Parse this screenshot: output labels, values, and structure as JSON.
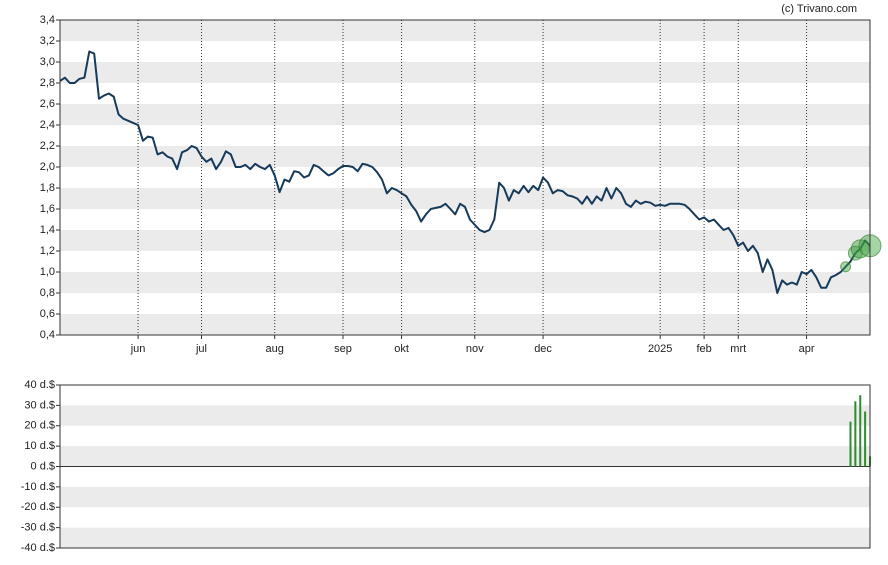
{
  "source": "(c) Trivano.com",
  "chart_data": [
    {
      "type": "line",
      "color": "#163a5a",
      "values": [
        2.82,
        2.85,
        2.8,
        2.8,
        2.84,
        2.85,
        3.1,
        3.08,
        2.65,
        2.68,
        2.7,
        2.67,
        2.5,
        2.46,
        2.44,
        2.42,
        2.4,
        2.25,
        2.29,
        2.28,
        2.12,
        2.14,
        2.1,
        2.08,
        1.98,
        2.14,
        2.16,
        2.2,
        2.18,
        2.1,
        2.05,
        2.08,
        1.98,
        2.05,
        2.15,
        2.12,
        2.0,
        2.0,
        2.02,
        1.98,
        2.03,
        2.0,
        1.98,
        2.02,
        1.92,
        1.76,
        1.88,
        1.86,
        1.96,
        1.95,
        1.9,
        1.92,
        2.02,
        2.0,
        1.96,
        1.92,
        1.94,
        1.98,
        2.01,
        2.01,
        2.0,
        1.96,
        2.03,
        2.02,
        2.0,
        1.95,
        1.88,
        1.75,
        1.8,
        1.78,
        1.75,
        1.72,
        1.64,
        1.58,
        1.48,
        1.55,
        1.6,
        1.61,
        1.62,
        1.65,
        1.6,
        1.55,
        1.65,
        1.62,
        1.5,
        1.45,
        1.4,
        1.38,
        1.4,
        1.5,
        1.85,
        1.8,
        1.68,
        1.78,
        1.75,
        1.82,
        1.76,
        1.82,
        1.78,
        1.9,
        1.85,
        1.75,
        1.78,
        1.77,
        1.73,
        1.72,
        1.7,
        1.65,
        1.72,
        1.65,
        1.72,
        1.68,
        1.8,
        1.7,
        1.8,
        1.75,
        1.65,
        1.62,
        1.68,
        1.65,
        1.67,
        1.66,
        1.63,
        1.64,
        1.63,
        1.65,
        1.65,
        1.65,
        1.64,
        1.6,
        1.55,
        1.5,
        1.52,
        1.48,
        1.5,
        1.45,
        1.4,
        1.42,
        1.35,
        1.25,
        1.28,
        1.2,
        1.25,
        1.18,
        1.0,
        1.12,
        1.02,
        0.8,
        0.92,
        0.88,
        0.9,
        0.88,
        1.0,
        0.98,
        1.02,
        0.95,
        0.85,
        0.85,
        0.95,
        0.97,
        1.0,
        1.05,
        1.1,
        1.18,
        1.22,
        1.3,
        1.25
      ],
      "highlight": [
        161,
        163,
        164,
        166
      ],
      "xlim": [
        0,
        166
      ],
      "xticks": [
        {
          "value": 16,
          "label": "jun"
        },
        {
          "value": 29,
          "label": "jul"
        },
        {
          "value": 44,
          "label": "aug"
        },
        {
          "value": 58,
          "label": "sep"
        },
        {
          "value": 70,
          "label": "okt"
        },
        {
          "value": 85,
          "label": "nov"
        },
        {
          "value": 99,
          "label": "dec"
        },
        {
          "value": 123,
          "label": "2025"
        },
        {
          "value": 132,
          "label": "feb"
        },
        {
          "value": 139,
          "label": "mrt"
        },
        {
          "value": 153,
          "label": "apr"
        }
      ],
      "ylim": [
        0.4,
        3.4
      ],
      "yticks": [
        {
          "value": 0.4,
          "label": "0,4"
        },
        {
          "value": 0.6,
          "label": "0,6"
        },
        {
          "value": 0.8,
          "label": "0,8"
        },
        {
          "value": 1.0,
          "label": "1,0"
        },
        {
          "value": 1.2,
          "label": "1,2"
        },
        {
          "value": 1.4,
          "label": "1,4"
        },
        {
          "value": 1.6,
          "label": "1,6"
        },
        {
          "value": 1.8,
          "label": "1,8"
        },
        {
          "value": 2.0,
          "label": "2,0"
        },
        {
          "value": 2.2,
          "label": "2,2"
        },
        {
          "value": 2.4,
          "label": "2,4"
        },
        {
          "value": 2.6,
          "label": "2,6"
        },
        {
          "value": 2.8,
          "label": "2,8"
        },
        {
          "value": 3.0,
          "label": "3,0"
        },
        {
          "value": 3.2,
          "label": "3,2"
        },
        {
          "value": 3.4,
          "label": "3,4"
        }
      ],
      "grid": true
    },
    {
      "type": "bar",
      "color": "#2e8b2e",
      "x": [
        162,
        163,
        164,
        165,
        166
      ],
      "values": [
        22,
        32,
        35,
        27,
        5
      ],
      "xlim": [
        0,
        166
      ],
      "ylim": [
        -40,
        40
      ],
      "yticks": [
        {
          "value": -40,
          "label": "-40 d.$"
        },
        {
          "value": -30,
          "label": "-30 d.$"
        },
        {
          "value": -20,
          "label": "-20 d.$"
        },
        {
          "value": -10,
          "label": "-10 d.$"
        },
        {
          "value": 0,
          "label": "0 d.$"
        },
        {
          "value": 10,
          "label": "10 d.$"
        },
        {
          "value": 20,
          "label": "20 d.$"
        },
        {
          "value": 30,
          "label": "30 d.$"
        },
        {
          "value": 40,
          "label": "40 d.$"
        }
      ],
      "grid": true
    }
  ]
}
